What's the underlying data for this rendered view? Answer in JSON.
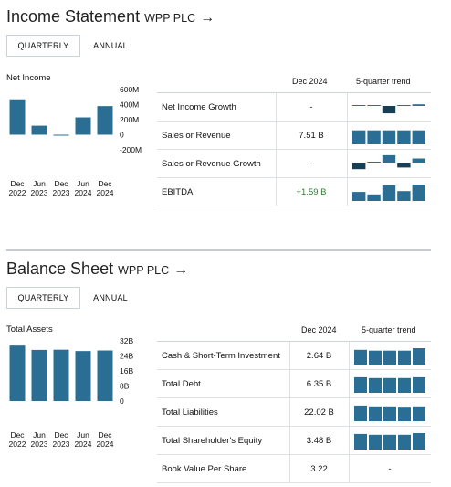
{
  "income": {
    "title": "Income Statement",
    "company": "WPP PLC",
    "arrow": "→",
    "tabs": [
      "QUARTERLY",
      "ANNUAL"
    ],
    "chart_label": "Net Income",
    "table_header": {
      "period": "Dec 2024",
      "trend": "5-quarter trend"
    },
    "rows": [
      {
        "name": "Net Income Growth",
        "value": "-"
      },
      {
        "name": "Sales or Revenue",
        "value": "7.51 B"
      },
      {
        "name": "Sales or Revenue Growth",
        "value": "-"
      },
      {
        "name": "EBITDA",
        "value": "+1.59 B"
      }
    ]
  },
  "balance": {
    "title": "Balance Sheet",
    "company": "WPP PLC",
    "arrow": "→",
    "tabs": [
      "QUARTERLY",
      "ANNUAL"
    ],
    "chart_label": "Total Assets",
    "table_header": {
      "period": "Dec 2024",
      "trend": "5-quarter trend"
    },
    "rows": [
      {
        "name": "Cash & Short-Term Investment",
        "value": "2.64 B"
      },
      {
        "name": "Total Debt",
        "value": "6.35 B"
      },
      {
        "name": "Total Liabilities",
        "value": "22.02 B"
      },
      {
        "name": "Total Shareholder's Equity",
        "value": "3.48 B"
      },
      {
        "name": "Book Value Per Share",
        "value": "3.22",
        "trend_text": "-"
      }
    ]
  },
  "colors": {
    "bar": "#2a6f93",
    "bar_dark": "#173f56",
    "pos": "#2e7d32"
  },
  "chart_data": [
    {
      "type": "bar",
      "title": "Net Income",
      "categories": [
        [
          "Dec",
          "2022"
        ],
        [
          "Jun",
          "2023"
        ],
        [
          "Dec",
          "2023"
        ],
        [
          "Jun",
          "2024"
        ],
        [
          "Dec",
          "2024"
        ]
      ],
      "values": [
        470,
        120,
        -10,
        230,
        380
      ],
      "yticks": [
        "600M",
        "400M",
        "200M",
        "0",
        "-200M"
      ],
      "ylim": [
        -200,
        600
      ]
    },
    {
      "type": "bar",
      "title": "Total Assets",
      "categories": [
        [
          "Dec",
          "2022"
        ],
        [
          "Jun",
          "2023"
        ],
        [
          "Dec",
          "2023"
        ],
        [
          "Jun",
          "2024"
        ],
        [
          "Dec",
          "2024"
        ]
      ],
      "values": [
        29.5,
        27.2,
        27.3,
        26.6,
        26.9
      ],
      "yticks": [
        "32B",
        "24B",
        "16B",
        "8B",
        "0"
      ],
      "ylim": [
        0,
        32
      ]
    }
  ],
  "trends": {
    "income": [
      {
        "kind": "growth",
        "values": [
          0,
          0,
          -0.9,
          0,
          0.2
        ]
      },
      {
        "kind": "bars",
        "values": [
          0.85,
          0.85,
          0.85,
          0.85,
          0.85
        ]
      },
      {
        "kind": "growth",
        "values": [
          -0.8,
          0,
          0.9,
          -0.6,
          0.5
        ]
      },
      {
        "kind": "bars",
        "values": [
          0.55,
          0.4,
          0.95,
          0.6,
          1.0
        ]
      }
    ],
    "balance": [
      {
        "kind": "bars",
        "values": [
          0.9,
          0.85,
          0.85,
          0.85,
          1.0
        ]
      },
      {
        "kind": "bars",
        "values": [
          0.95,
          0.9,
          0.9,
          0.9,
          0.95
        ]
      },
      {
        "kind": "bars",
        "values": [
          0.95,
          0.9,
          0.9,
          0.88,
          0.9
        ]
      },
      {
        "kind": "bars",
        "values": [
          0.95,
          0.9,
          0.9,
          0.9,
          1.0
        ]
      },
      {
        "kind": "none",
        "values": []
      }
    ]
  }
}
